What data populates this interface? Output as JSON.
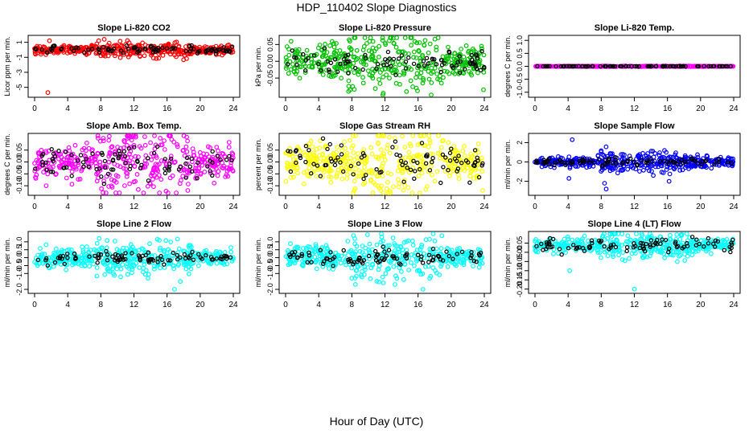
{
  "main_title": "HDP_110402  Slope Diagnostics",
  "x_axis_label": "Hour of Day (UTC)",
  "chart_data": [
    {
      "type": "scatter",
      "title": "Slope Li-820 CO2",
      "ylabel": "Licor ppm per min.",
      "color": "#ff0000",
      "xlim": [
        0,
        24
      ],
      "ylim": [
        -6,
        1.6
      ],
      "xticks": [
        "0",
        "4",
        "8",
        "12",
        "16",
        "20",
        "24"
      ],
      "yticks": [
        "1",
        "-1",
        "-3",
        "-5"
      ],
      "ytick_values": [
        1,
        -1,
        -3,
        -5
      ],
      "baseline": 0,
      "spread": 0.35,
      "ref_spread": 0.25,
      "outliers": [
        [
          1.8,
          1.2
        ],
        [
          1.6,
          -5.7
        ],
        [
          9.7,
          -0.8
        ]
      ]
    },
    {
      "type": "scatter",
      "title": "Slope Li-820 Pressure",
      "ylabel": "kPa per min.",
      "color": "#00c000",
      "xlim": [
        0,
        24
      ],
      "ylim": [
        -0.1,
        0.07
      ],
      "xticks": [
        "0",
        "4",
        "8",
        "12",
        "16",
        "20",
        "24"
      ],
      "yticks": [
        "0.05",
        "0.00",
        "-0.05"
      ],
      "ytick_values": [
        0.05,
        0,
        -0.05
      ],
      "baseline": 0,
      "spread": 0.03,
      "ref_spread": 0.02,
      "outliers": [
        [
          8.1,
          -0.075
        ],
        [
          11.8,
          -0.095
        ],
        [
          15.8,
          -0.08
        ],
        [
          23.9,
          -0.085
        ]
      ]
    },
    {
      "type": "scatter",
      "title": "Slope Li-820 Temp.",
      "ylabel": "degrees C per min.",
      "color": "#ff00ff",
      "xlim": [
        0,
        24
      ],
      "ylim": [
        -1.1,
        1.1
      ],
      "xticks": [
        "0",
        "4",
        "8",
        "12",
        "16",
        "20",
        "24"
      ],
      "yticks": [
        "1.0",
        "0.5",
        "0.0",
        "-0.5",
        "-1.0"
      ],
      "ytick_values": [
        1,
        0.5,
        0,
        -0.5,
        -1
      ],
      "baseline": 0,
      "spread": 0.005,
      "ref_spread": 0.003,
      "outliers": []
    },
    {
      "type": "scatter",
      "title": "Slope Amb. Box Temp.",
      "ylabel": "degrees C per min.",
      "color": "#ff00ff",
      "xlim": [
        0,
        24
      ],
      "ylim": [
        -0.13,
        0.11
      ],
      "xticks": [
        "0",
        "4",
        "8",
        "12",
        "16",
        "20",
        "24"
      ],
      "yticks": [
        "0.05",
        "0.00",
        "-0.05",
        "-0.10"
      ],
      "ytick_values": [
        0.05,
        0,
        -0.05,
        -0.1
      ],
      "baseline": 0,
      "spread": 0.045,
      "ref_spread": 0.035,
      "outliers": [
        [
          8.3,
          0.1
        ],
        [
          1.4,
          -0.1
        ],
        [
          18.5,
          -0.12
        ]
      ]
    },
    {
      "type": "scatter",
      "title": "Slope Gas Stream RH",
      "ylabel": "percent per min.",
      "color": "#ffff00",
      "xlim": [
        0,
        24
      ],
      "ylim": [
        -0.13,
        0.11
      ],
      "xticks": [
        "0",
        "4",
        "8",
        "12",
        "16",
        "20",
        "24"
      ],
      "yticks": [
        "0.05",
        "0.00",
        "-0.05",
        "-0.10"
      ],
      "ytick_values": [
        0.05,
        0,
        -0.05,
        -0.1
      ],
      "baseline": 0,
      "spread": 0.05,
      "ref_spread": 0.04,
      "outliers": [
        [
          8.3,
          -0.12
        ],
        [
          11.5,
          -0.12
        ],
        [
          23.8,
          -0.12
        ]
      ]
    },
    {
      "type": "scatter",
      "title": "Slope Sample Flow",
      "ylabel": "ml/min per min.",
      "color": "#0000ff",
      "xlim": [
        0,
        24
      ],
      "ylim": [
        -3.2,
        2.7
      ],
      "xticks": [
        "0",
        "4",
        "8",
        "12",
        "16",
        "20",
        "24"
      ],
      "yticks": [
        "2",
        "0",
        "-2"
      ],
      "ytick_values": [
        2,
        0,
        -2
      ],
      "baseline": 0,
      "spread": 0.35,
      "ref_spread": 0.2,
      "outliers": [
        [
          4.5,
          2.3
        ],
        [
          4.1,
          -1.7
        ],
        [
          8.4,
          -2.2
        ],
        [
          8.6,
          -2.8
        ],
        [
          16.2,
          -2
        ]
      ]
    },
    {
      "type": "scatter",
      "title": "Slope Line 2 Flow",
      "ylabel": "ml/min per min.",
      "color": "#00ffff",
      "xlim": [
        0,
        24
      ],
      "ylim": [
        -2.1,
        1.5
      ],
      "xticks": [
        "0",
        "4",
        "8",
        "12",
        "16",
        "20",
        "24"
      ],
      "yticks": [
        "1.0",
        "0.5",
        "0.0",
        "-0.5",
        "-1.0",
        "-2.0"
      ],
      "ytick_values": [
        1,
        0.5,
        0,
        -0.5,
        -1,
        -2
      ],
      "baseline": 0,
      "spread": 0.35,
      "ref_spread": 0.2,
      "outliers": [
        [
          10.4,
          -1.2
        ],
        [
          13.7,
          -1.3
        ],
        [
          16.9,
          -2
        ],
        [
          17.6,
          -1.5
        ]
      ]
    },
    {
      "type": "scatter",
      "title": "Slope Line 3 Flow",
      "ylabel": "ml/min per min.",
      "color": "#00ffff",
      "xlim": [
        0,
        24
      ],
      "ylim": [
        -2.1,
        1.5
      ],
      "xticks": [
        "0",
        "4",
        "8",
        "12",
        "16",
        "20",
        "24"
      ],
      "yticks": [
        "1.0",
        "0.5",
        "0.0",
        "-0.5",
        "-1.0",
        "-2.0"
      ],
      "ytick_values": [
        1,
        0.5,
        0,
        -0.5,
        -1,
        -2
      ],
      "baseline": 0,
      "spread": 0.45,
      "ref_spread": 0.3,
      "outliers": [
        [
          8,
          -1.3
        ],
        [
          8.2,
          1.4
        ],
        [
          16.6,
          -2
        ],
        [
          11.6,
          1.3
        ]
      ]
    },
    {
      "type": "scatter",
      "title": "Slope Line 4 (LT) Flow",
      "ylabel": "ml/min per min.",
      "color": "#00ffff",
      "xlim": [
        0,
        24
      ],
      "ylim": [
        -0.21,
        0.1
      ],
      "xticks": [
        "0",
        "4",
        "8",
        "12",
        "16",
        "20",
        "24"
      ],
      "yticks": [
        "0.05",
        "0.00",
        "-0.05",
        "-0.10",
        "-0.15",
        "-0.20"
      ],
      "ytick_values": [
        0.05,
        0,
        -0.05,
        -0.1,
        -0.15,
        -0.2
      ],
      "baseline": 0.04,
      "spread": 0.025,
      "ref_spread": 0.02,
      "outliers": [
        [
          4.2,
          -0.1
        ],
        [
          12,
          -0.2
        ],
        [
          8.2,
          0.09
        ]
      ]
    }
  ]
}
